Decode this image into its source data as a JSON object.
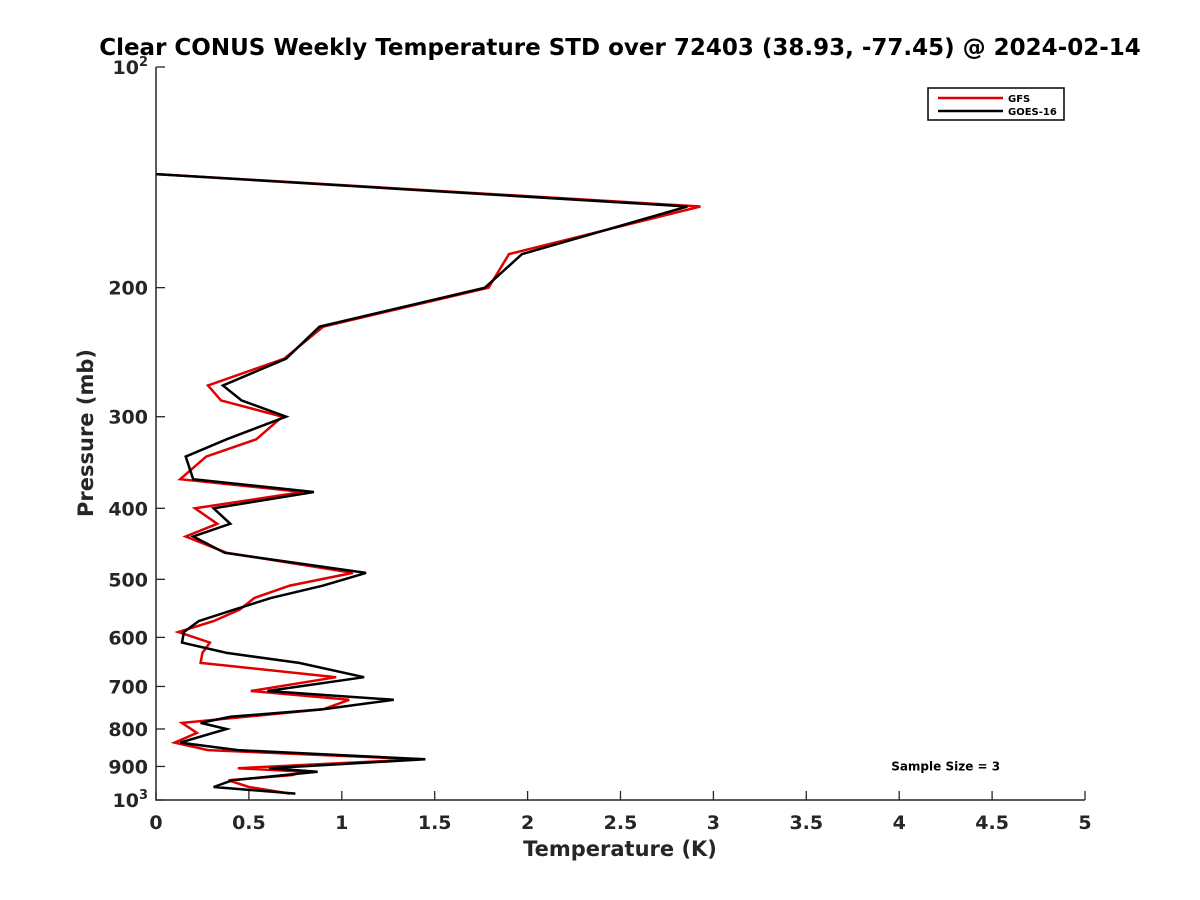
{
  "chart_data": {
    "type": "line",
    "title": "Clear CONUS Weekly Temperature STD over 72403 (38.93, -77.45) @ 2024-02-14",
    "xlabel": "Temperature (K)",
    "ylabel": "Pressure (mb)",
    "xlim": [
      0,
      5
    ],
    "ylim": [
      100,
      1000
    ],
    "yscale": "log",
    "y_reversed": true,
    "grid": false,
    "legend_position": "top-right",
    "x_ticks": [
      {
        "value": 0,
        "label": "0"
      },
      {
        "value": 0.5,
        "label": "0.5"
      },
      {
        "value": 1,
        "label": "1"
      },
      {
        "value": 1.5,
        "label": "1.5"
      },
      {
        "value": 2,
        "label": "2"
      },
      {
        "value": 2.5,
        "label": "2.5"
      },
      {
        "value": 3,
        "label": "3"
      },
      {
        "value": 3.5,
        "label": "3.5"
      },
      {
        "value": 4,
        "label": "4"
      },
      {
        "value": 4.5,
        "label": "4.5"
      },
      {
        "value": 5,
        "label": "5"
      }
    ],
    "y_ticks": [
      {
        "value": 100,
        "label": "10",
        "sup": "2"
      },
      {
        "value": 200,
        "label": "200"
      },
      {
        "value": 300,
        "label": "300"
      },
      {
        "value": 400,
        "label": "400"
      },
      {
        "value": 500,
        "label": "500"
      },
      {
        "value": 600,
        "label": "600"
      },
      {
        "value": 700,
        "label": "700"
      },
      {
        "value": 800,
        "label": "800"
      },
      {
        "value": 900,
        "label": "900"
      },
      {
        "value": 1000,
        "label": "10",
        "sup": "3"
      }
    ],
    "series": [
      {
        "name": "GFS",
        "color": "#e00000",
        "x": [
          0.0,
          2.93,
          1.9,
          1.79,
          0.9,
          0.69,
          0.28,
          0.35,
          0.68,
          0.54,
          0.27,
          0.13,
          0.79,
          0.21,
          0.33,
          0.16,
          0.38,
          1.06,
          0.72,
          0.53,
          0.45,
          0.31,
          0.12,
          0.29,
          0.25,
          0.24,
          0.97,
          0.51,
          1.04,
          0.9,
          0.14,
          0.22,
          0.1,
          0.28,
          1.42,
          0.44,
          0.8,
          0.73,
          0.39,
          0.5,
          0.72
        ],
        "y": [
          140,
          155,
          180,
          200,
          226,
          250,
          272,
          285,
          300,
          322,
          340,
          365,
          380,
          400,
          420,
          437,
          460,
          490,
          510,
          530,
          550,
          570,
          590,
          610,
          630,
          650,
          680,
          710,
          730,
          752,
          785,
          810,
          835,
          855,
          880,
          905,
          915,
          925,
          940,
          960,
          980
        ]
      },
      {
        "name": "GOES-16",
        "color": "#000000",
        "x": [
          0.0,
          2.86,
          1.97,
          1.77,
          0.88,
          0.7,
          0.36,
          0.46,
          0.7,
          0.38,
          0.16,
          0.2,
          0.85,
          0.31,
          0.4,
          0.2,
          0.37,
          1.13,
          0.9,
          0.62,
          0.42,
          0.23,
          0.15,
          0.14,
          0.38,
          0.77,
          1.12,
          0.6,
          1.28,
          0.9,
          0.4,
          0.24,
          0.38,
          0.13,
          0.44,
          1.45,
          0.61,
          0.87,
          0.41,
          0.31,
          0.75
        ],
        "y": [
          140,
          155,
          180,
          200,
          226,
          250,
          272,
          285,
          300,
          322,
          340,
          365,
          380,
          400,
          420,
          437,
          460,
          490,
          510,
          530,
          550,
          570,
          590,
          610,
          630,
          650,
          680,
          710,
          730,
          752,
          770,
          785,
          800,
          835,
          855,
          880,
          905,
          915,
          940,
          960,
          980
        ]
      }
    ],
    "annotations": [
      {
        "text": "Sample Size = 3",
        "x": 4.25,
        "y": 900
      }
    ]
  }
}
